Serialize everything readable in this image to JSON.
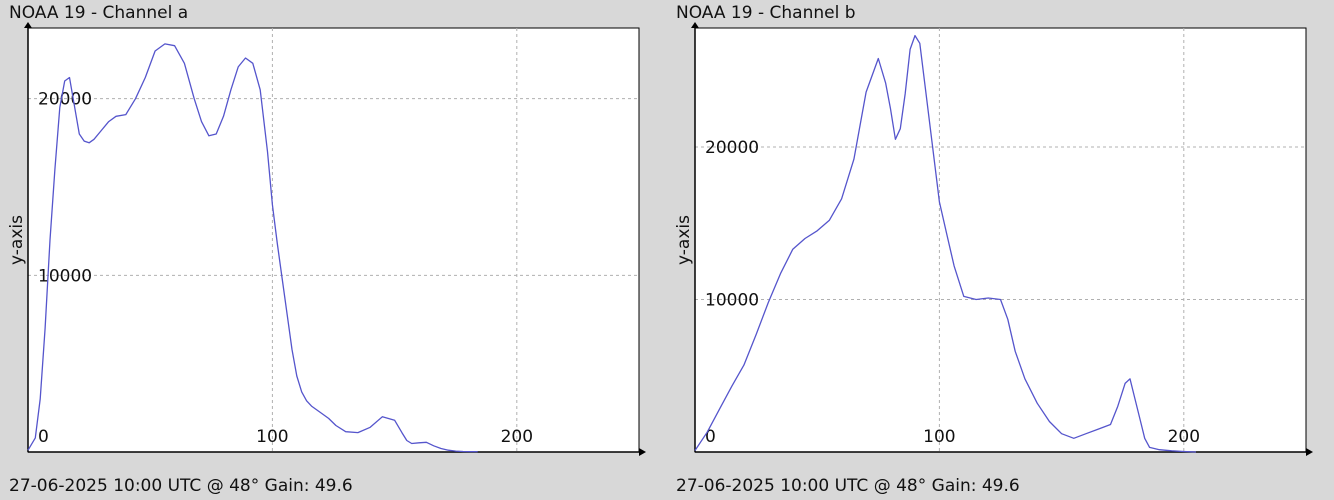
{
  "chart_data": [
    {
      "type": "line",
      "title": "NOAA 19 - Channel a",
      "footer": "27-06-2025 10:00 UTC @ 48° Gain: 49.6",
      "xlabel": "",
      "ylabel": "y-axis",
      "xlim": [
        0,
        250
      ],
      "ylim": [
        0,
        24000
      ],
      "xticks": [
        0,
        100,
        200
      ],
      "yticks": [
        10000,
        20000
      ],
      "grid": true,
      "line_color": "#5555cc",
      "series": [
        {
          "x": [
            0,
            3,
            5,
            7,
            9,
            11,
            13,
            15,
            17,
            19,
            21,
            23,
            25,
            27,
            30,
            33,
            36,
            40,
            44,
            48,
            52,
            56,
            60,
            64,
            68,
            71,
            74,
            77,
            80,
            83,
            86,
            89,
            92,
            95,
            98,
            100,
            102,
            104,
            106,
            108,
            110,
            112,
            114,
            116,
            118,
            120,
            123,
            126,
            130,
            135,
            140,
            145,
            150,
            153,
            155,
            157,
            160,
            163,
            166,
            169,
            172,
            175,
            178,
            181,
            184
          ],
          "y": [
            100,
            800,
            3000,
            7000,
            12000,
            16000,
            19500,
            21000,
            21200,
            19600,
            18000,
            17600,
            17500,
            17700,
            18200,
            18700,
            19000,
            19100,
            20000,
            21200,
            22700,
            23100,
            23000,
            22000,
            20000,
            18700,
            17900,
            18000,
            19000,
            20500,
            21800,
            22300,
            22000,
            20500,
            17000,
            14000,
            11800,
            9800,
            7800,
            5800,
            4300,
            3400,
            2900,
            2600,
            2400,
            2200,
            1900,
            1500,
            1150,
            1100,
            1400,
            2000,
            1800,
            1100,
            650,
            480,
            520,
            550,
            350,
            200,
            100,
            50,
            30,
            20,
            20
          ]
        }
      ]
    },
    {
      "type": "line",
      "title": "NOAA 19 - Channel b",
      "footer": "27-06-2025 10:00 UTC @ 48° Gain: 49.6",
      "xlabel": "",
      "ylabel": "y-axis",
      "xlim": [
        0,
        250
      ],
      "ylim": [
        0,
        27800
      ],
      "xticks": [
        0,
        100,
        200
      ],
      "yticks": [
        10000,
        20000
      ],
      "grid": true,
      "line_color": "#5555cc",
      "series": [
        {
          "x": [
            0,
            5,
            10,
            15,
            20,
            25,
            30,
            35,
            40,
            45,
            50,
            55,
            60,
            65,
            70,
            75,
            78,
            80,
            82,
            84,
            86,
            88,
            90,
            92,
            94,
            96,
            98,
            100,
            103,
            106,
            110,
            115,
            120,
            125,
            128,
            131,
            135,
            140,
            145,
            150,
            155,
            160,
            165,
            170,
            173,
            176,
            178,
            180,
            182,
            184,
            186,
            190,
            195,
            200,
            205
          ],
          "y": [
            100,
            1300,
            2800,
            4300,
            5700,
            7700,
            9800,
            11700,
            13300,
            14000,
            14500,
            15200,
            16600,
            19200,
            23600,
            25800,
            24200,
            22500,
            20500,
            21200,
            23500,
            26400,
            27300,
            26800,
            24200,
            21600,
            19000,
            16400,
            14300,
            12200,
            10200,
            10000,
            10100,
            10000,
            8700,
            6600,
            4800,
            3200,
            2000,
            1200,
            900,
            1200,
            1500,
            1800,
            3000,
            4500,
            4800,
            3500,
            2200,
            900,
            300,
            150,
            80,
            30,
            0
          ]
        }
      ]
    }
  ]
}
